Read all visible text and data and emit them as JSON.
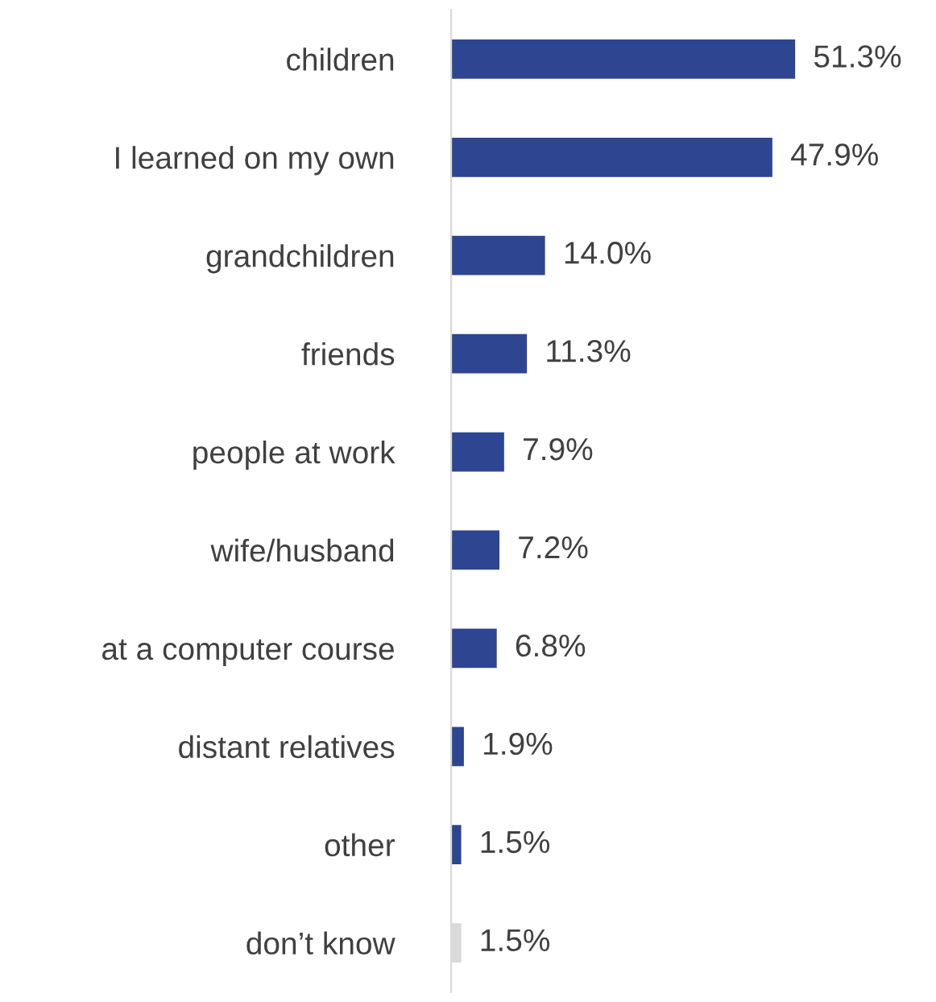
{
  "chart_data": {
    "type": "bar",
    "orientation": "horizontal",
    "categories": [
      "children",
      "I learned on my own",
      "grandchildren",
      "friends",
      "people at work",
      "wife/husband",
      "at a computer course",
      "distant relatives",
      "other",
      "don’t know"
    ],
    "values": [
      51.3,
      47.9,
      14.0,
      11.3,
      7.9,
      7.2,
      6.8,
      1.9,
      1.5,
      1.5
    ],
    "colors": [
      "#2e4591",
      "#2e4591",
      "#2e4591",
      "#2e4591",
      "#2e4591",
      "#2e4591",
      "#2e4591",
      "#2e4591",
      "#2e4591",
      "#d9d9d9"
    ],
    "value_labels": [
      "51.3%",
      "47.9%",
      "14.0%",
      "11.3%",
      "7.9%",
      "7.2%",
      "6.8%",
      "1.9%",
      "1.5%",
      "1.5%"
    ],
    "grid": false,
    "legend": false
  }
}
